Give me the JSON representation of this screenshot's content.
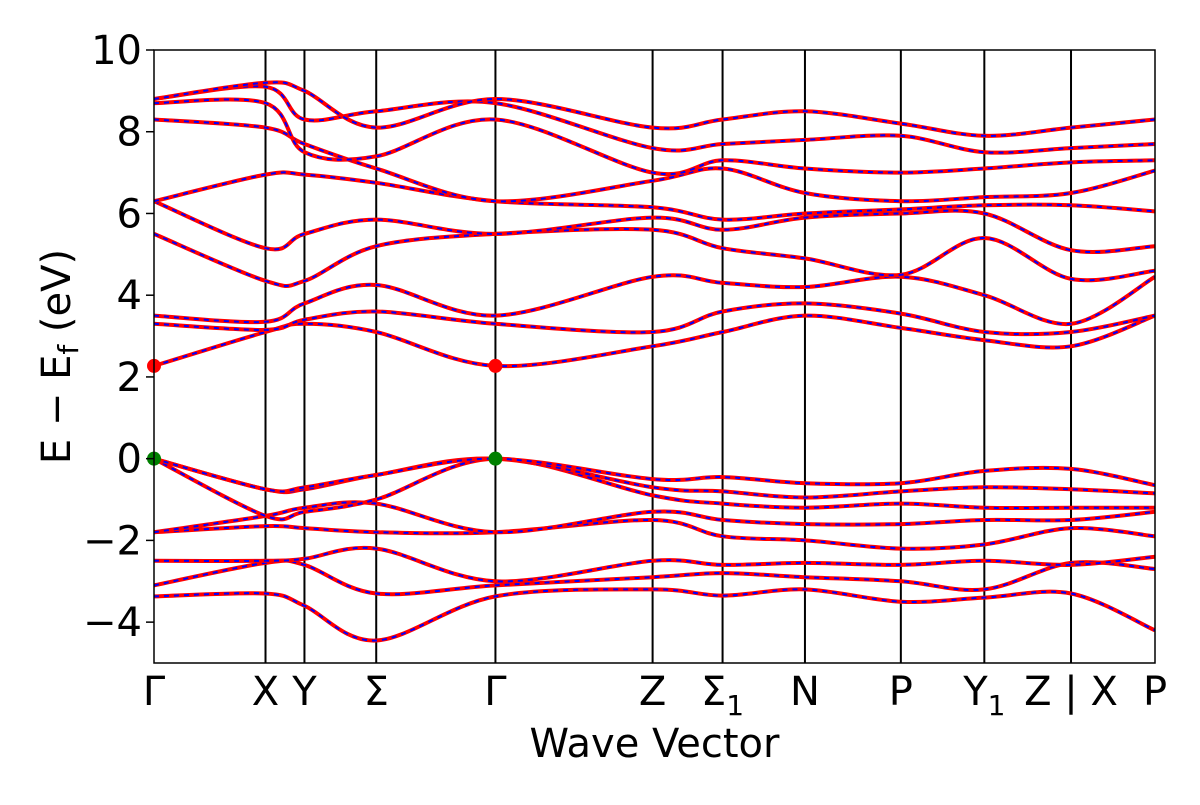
{
  "chart_data": {
    "type": "line",
    "title": "",
    "xlabel": "Wave Vector",
    "ylabel": "E − E_f (eV)",
    "ylabel_parts": {
      "main": "E  −  E",
      "sub": "f",
      "tail": " (eV)"
    },
    "ylim": [
      -5,
      10
    ],
    "yticks": [
      -4,
      -2,
      0,
      2,
      4,
      6,
      8,
      10
    ],
    "ytick_labels": [
      "−4",
      "−2",
      "0",
      "2",
      "4",
      "6",
      "8",
      "10"
    ],
    "grid": false,
    "kpath": [
      {
        "label": "Γ",
        "sub": "",
        "x": 0.0
      },
      {
        "label": "X",
        "sub": "",
        "x": 0.1114
      },
      {
        "label": "Y",
        "sub": "",
        "x": 0.1503
      },
      {
        "label": "Σ",
        "sub": "",
        "x": 0.222
      },
      {
        "label": "Γ",
        "sub": "",
        "x": 0.3411
      },
      {
        "label": "Z",
        "sub": "",
        "x": 0.4981
      },
      {
        "label": "Σ",
        "sub": "1",
        "x": 0.568
      },
      {
        "label": "N",
        "sub": "",
        "x": 0.6503
      },
      {
        "label": "P",
        "sub": "",
        "x": 0.7461
      },
      {
        "label": "Y",
        "sub": "1",
        "x": 0.8295
      },
      {
        "label": "Z | X",
        "sub": "",
        "x": 0.9161
      },
      {
        "label": "P",
        "sub": "",
        "x": 1.0
      }
    ],
    "series_styles": [
      {
        "color": "#ff0000",
        "style": "solid"
      },
      {
        "color": "#0000ff",
        "style": "dashed"
      }
    ],
    "highlight_points": [
      {
        "x": 0.0,
        "y": 2.27,
        "color": "#ff0000"
      },
      {
        "x": 0.3411,
        "y": 2.27,
        "color": "#ff0000"
      },
      {
        "x": 0.0,
        "y": 0.0,
        "color": "#008000"
      },
      {
        "x": 0.3411,
        "y": 0.0,
        "color": "#008000"
      }
    ],
    "bands": [
      [
        [
          0,
          -3.37
        ],
        [
          0.1114,
          -3.3
        ],
        [
          0.1503,
          -3.6
        ],
        [
          0.222,
          -4.45
        ],
        [
          0.3411,
          -3.37
        ],
        [
          0.4981,
          -3.2
        ],
        [
          0.568,
          -3.35
        ],
        [
          0.6503,
          -3.2
        ],
        [
          0.7461,
          -3.5
        ],
        [
          0.8295,
          -3.4
        ],
        [
          0.9161,
          -3.3
        ],
        [
          1.0,
          -4.2
        ]
      ],
      [
        [
          0,
          -3.1
        ],
        [
          0.1114,
          -2.55
        ],
        [
          0.1503,
          -2.6
        ],
        [
          0.222,
          -3.3
        ],
        [
          0.3411,
          -3.1
        ],
        [
          0.4981,
          -2.9
        ],
        [
          0.568,
          -2.8
        ],
        [
          0.6503,
          -2.9
        ],
        [
          0.7461,
          -3.0
        ],
        [
          0.8295,
          -3.2
        ],
        [
          0.9161,
          -2.55
        ],
        [
          1.0,
          -2.7
        ]
      ],
      [
        [
          0,
          -2.5
        ],
        [
          0.1114,
          -2.5
        ],
        [
          0.1503,
          -2.45
        ],
        [
          0.222,
          -2.2
        ],
        [
          0.3411,
          -3.0
        ],
        [
          0.4981,
          -2.5
        ],
        [
          0.568,
          -2.6
        ],
        [
          0.6503,
          -2.55
        ],
        [
          0.7461,
          -2.6
        ],
        [
          0.8295,
          -2.5
        ],
        [
          0.9161,
          -2.6
        ],
        [
          1.0,
          -2.4
        ]
      ],
      [
        [
          0,
          -1.8
        ],
        [
          0.1114,
          -1.65
        ],
        [
          0.1503,
          -1.7
        ],
        [
          0.222,
          -1.8
        ],
        [
          0.3411,
          -1.8
        ],
        [
          0.4981,
          -1.5
        ],
        [
          0.568,
          -1.9
        ],
        [
          0.6503,
          -2.0
        ],
        [
          0.7461,
          -2.2
        ],
        [
          0.8295,
          -2.1
        ],
        [
          0.9161,
          -1.7
        ],
        [
          1.0,
          -1.9
        ]
      ],
      [
        [
          0,
          -1.8
        ],
        [
          0.1114,
          -1.4
        ],
        [
          0.1503,
          -1.2
        ],
        [
          0.222,
          -1.1
        ],
        [
          0.3411,
          -1.8
        ],
        [
          0.4981,
          -1.3
        ],
        [
          0.568,
          -1.5
        ],
        [
          0.6503,
          -1.6
        ],
        [
          0.7461,
          -1.6
        ],
        [
          0.8295,
          -1.5
        ],
        [
          0.9161,
          -1.5
        ],
        [
          1.0,
          -1.3
        ]
      ],
      [
        [
          0,
          0.0
        ],
        [
          0.1114,
          -1.4
        ],
        [
          0.1503,
          -1.3
        ],
        [
          0.222,
          -1.0
        ],
        [
          0.3411,
          0.0
        ],
        [
          0.4981,
          -0.9
        ],
        [
          0.568,
          -1.1
        ],
        [
          0.6503,
          -1.2
        ],
        [
          0.7461,
          -1.1
        ],
        [
          0.8295,
          -1.2
        ],
        [
          0.9161,
          -1.2
        ],
        [
          1.0,
          -1.2
        ]
      ],
      [
        [
          0,
          0.0
        ],
        [
          0.1114,
          -0.75
        ],
        [
          0.1503,
          -0.75
        ],
        [
          0.222,
          -0.4
        ],
        [
          0.3411,
          0.0
        ],
        [
          0.4981,
          -0.7
        ],
        [
          0.568,
          -0.8
        ],
        [
          0.6503,
          -0.95
        ],
        [
          0.7461,
          -0.8
        ],
        [
          0.8295,
          -0.7
        ],
        [
          0.9161,
          -0.75
        ],
        [
          1.0,
          -0.85
        ]
      ],
      [
        [
          0,
          0.0
        ],
        [
          0.1114,
          -0.75
        ],
        [
          0.1503,
          -0.7
        ],
        [
          0.222,
          -0.4
        ],
        [
          0.3411,
          0.0
        ],
        [
          0.4981,
          -0.5
        ],
        [
          0.568,
          -0.45
        ],
        [
          0.6503,
          -0.6
        ],
        [
          0.7461,
          -0.6
        ],
        [
          0.8295,
          -0.3
        ],
        [
          0.9161,
          -0.25
        ],
        [
          1.0,
          -0.65
        ]
      ],
      [
        [
          0,
          2.27
        ],
        [
          0.1114,
          3.1
        ],
        [
          0.1503,
          3.3
        ],
        [
          0.222,
          3.1
        ],
        [
          0.3411,
          2.27
        ],
        [
          0.4981,
          2.75
        ],
        [
          0.568,
          3.1
        ],
        [
          0.6503,
          3.5
        ],
        [
          0.7461,
          3.2
        ],
        [
          0.8295,
          2.9
        ],
        [
          0.9161,
          2.75
        ],
        [
          1.0,
          3.5
        ]
      ],
      [
        [
          0,
          3.3
        ],
        [
          0.1114,
          3.15
        ],
        [
          0.1503,
          3.4
        ],
        [
          0.222,
          3.6
        ],
        [
          0.3411,
          3.3
        ],
        [
          0.4981,
          3.1
        ],
        [
          0.568,
          3.6
        ],
        [
          0.6503,
          3.8
        ],
        [
          0.7461,
          3.55
        ],
        [
          0.8295,
          3.1
        ],
        [
          0.9161,
          3.1
        ],
        [
          1.0,
          3.5
        ]
      ],
      [
        [
          0,
          3.5
        ],
        [
          0.1114,
          3.35
        ],
        [
          0.1503,
          3.8
        ],
        [
          0.222,
          4.25
        ],
        [
          0.3411,
          3.5
        ],
        [
          0.4981,
          4.45
        ],
        [
          0.568,
          4.3
        ],
        [
          0.6503,
          4.2
        ],
        [
          0.7461,
          4.45
        ],
        [
          0.8295,
          4.0
        ],
        [
          0.9161,
          3.3
        ],
        [
          1.0,
          4.45
        ]
      ],
      [
        [
          0,
          5.5
        ],
        [
          0.1114,
          4.35
        ],
        [
          0.1503,
          4.35
        ],
        [
          0.222,
          5.2
        ],
        [
          0.3411,
          5.5
        ],
        [
          0.4981,
          5.6
        ],
        [
          0.568,
          5.15
        ],
        [
          0.6503,
          4.9
        ],
        [
          0.7461,
          4.5
        ],
        [
          0.8295,
          5.4
        ],
        [
          0.9161,
          4.4
        ],
        [
          1.0,
          4.6
        ]
      ],
      [
        [
          0,
          6.3
        ],
        [
          0.1114,
          5.15
        ],
        [
          0.1503,
          5.5
        ],
        [
          0.222,
          5.85
        ],
        [
          0.3411,
          5.5
        ],
        [
          0.4981,
          5.9
        ],
        [
          0.568,
          5.6
        ],
        [
          0.6503,
          5.9
        ],
        [
          0.7461,
          6.0
        ],
        [
          0.8295,
          6.0
        ],
        [
          0.9161,
          5.1
        ],
        [
          1.0,
          5.2
        ]
      ],
      [
        [
          0,
          6.3
        ],
        [
          0.1114,
          6.95
        ],
        [
          0.1503,
          6.95
        ],
        [
          0.222,
          6.75
        ],
        [
          0.3411,
          6.3
        ],
        [
          0.4981,
          6.15
        ],
        [
          0.568,
          5.85
        ],
        [
          0.6503,
          6.0
        ],
        [
          0.7461,
          6.1
        ],
        [
          0.8295,
          6.2
        ],
        [
          0.9161,
          6.2
        ],
        [
          1.0,
          6.05
        ]
      ],
      [
        [
          0,
          8.3
        ],
        [
          0.1114,
          8.1
        ],
        [
          0.1503,
          7.7
        ],
        [
          0.222,
          7.1
        ],
        [
          0.3411,
          6.3
        ],
        [
          0.4981,
          6.8
        ],
        [
          0.568,
          7.1
        ],
        [
          0.6503,
          6.5
        ],
        [
          0.7461,
          6.3
        ],
        [
          0.8295,
          6.4
        ],
        [
          0.9161,
          6.5
        ],
        [
          1.0,
          7.05
        ]
      ],
      [
        [
          0,
          8.7
        ],
        [
          0.1114,
          8.7
        ],
        [
          0.1503,
          7.5
        ],
        [
          0.222,
          7.4
        ],
        [
          0.3411,
          8.3
        ],
        [
          0.4981,
          7.0
        ],
        [
          0.568,
          7.3
        ],
        [
          0.6503,
          7.1
        ],
        [
          0.7461,
          7.0
        ],
        [
          0.8295,
          7.1
        ],
        [
          0.9161,
          7.25
        ],
        [
          1.0,
          7.3
        ]
      ],
      [
        [
          0,
          8.8
        ],
        [
          0.1114,
          9.1
        ],
        [
          0.1503,
          8.3
        ],
        [
          0.222,
          8.5
        ],
        [
          0.3411,
          8.7
        ],
        [
          0.4981,
          7.6
        ],
        [
          0.568,
          7.7
        ],
        [
          0.6503,
          7.8
        ],
        [
          0.7461,
          7.9
        ],
        [
          0.8295,
          7.5
        ],
        [
          0.9161,
          7.6
        ],
        [
          1.0,
          7.7
        ]
      ],
      [
        [
          0,
          8.8
        ],
        [
          0.1114,
          9.2
        ],
        [
          0.1503,
          9.0
        ],
        [
          0.222,
          8.1
        ],
        [
          0.3411,
          8.8
        ],
        [
          0.4981,
          8.1
        ],
        [
          0.568,
          8.3
        ],
        [
          0.6503,
          8.5
        ],
        [
          0.7461,
          8.2
        ],
        [
          0.8295,
          7.9
        ],
        [
          0.9161,
          8.1
        ],
        [
          1.0,
          8.3
        ]
      ]
    ]
  }
}
